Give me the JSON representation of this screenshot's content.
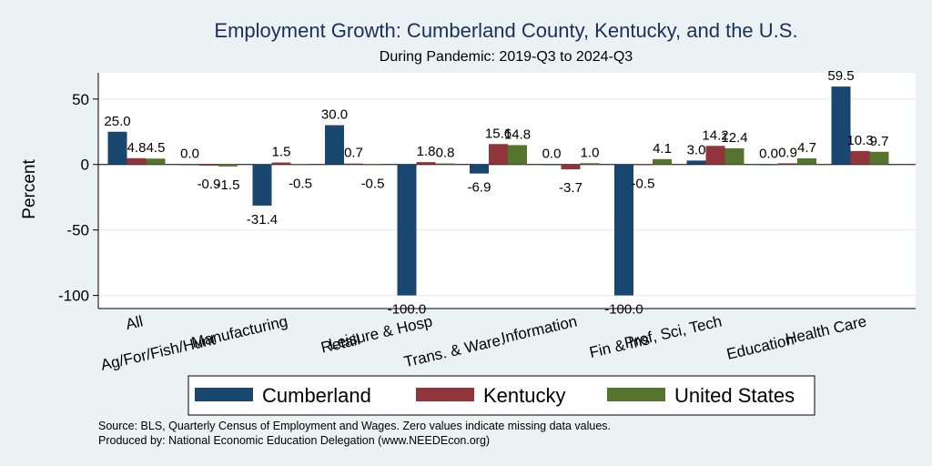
{
  "chart_data": {
    "type": "bar",
    "title": "Employment Growth: Cumberland County, Kentucky, and the U.S.",
    "subtitle": "During Pandemic: 2019-Q3 to 2024-Q3",
    "xlabel": "",
    "ylabel": "Percent",
    "ylim": [
      -110,
      70
    ],
    "yticks": [
      50,
      0,
      -50,
      -100
    ],
    "grid": true,
    "categories": [
      "All",
      "Ag/For/Fish/Hunt",
      "Manufacturing",
      "Retail",
      "Leisure & Hosp",
      "Trans. & Ware.",
      "Information",
      "Fin & Ins",
      "Prof, Sci, Tech",
      "Education",
      "Health Care"
    ],
    "series": [
      {
        "name": "Cumberland",
        "color": "#1a476f",
        "values": [
          25.0,
          0.0,
          -31.4,
          30.0,
          -100.0,
          -6.9,
          0.0,
          -100.0,
          3.0,
          0.0,
          59.5
        ],
        "labels": [
          "25.0",
          "0.0",
          "-31.4",
          "30.0",
          "-100.0",
          "-6.9",
          "0.0",
          "-100.0",
          "3.0",
          "0.0",
          "59.5"
        ]
      },
      {
        "name": "Kentucky",
        "color": "#90353b",
        "values": [
          4.8,
          -0.9,
          1.5,
          0.7,
          1.8,
          15.6,
          -3.7,
          -0.5,
          14.2,
          0.9,
          10.3
        ],
        "labels": [
          "4.8",
          "-0.9",
          "1.5",
          "0.7",
          "1.8",
          "15.6",
          "-3.7",
          "-0.5",
          "14.2",
          "0.9",
          "10.3"
        ]
      },
      {
        "name": "United States",
        "color": "#55752f",
        "values": [
          4.5,
          -1.5,
          -0.5,
          -0.5,
          0.8,
          14.8,
          1.0,
          4.1,
          12.4,
          4.7,
          9.7
        ],
        "labels": [
          "4.5",
          "-1.5",
          "-0.5",
          "-0.5",
          "0.8",
          "14.8",
          "1.0",
          "4.1",
          "12.4",
          "4.7",
          "9.7"
        ]
      }
    ],
    "legend": {
      "placement": "bottom",
      "entries": [
        "Cumberland",
        "Kentucky",
        "United States"
      ]
    },
    "notes": [
      "Source: BLS, Quarterly Census of Employment and Wages. Zero values indicate missing data values.",
      "Produced by: National Economic Education Delegation (www.NEEDEcon.org)"
    ]
  }
}
